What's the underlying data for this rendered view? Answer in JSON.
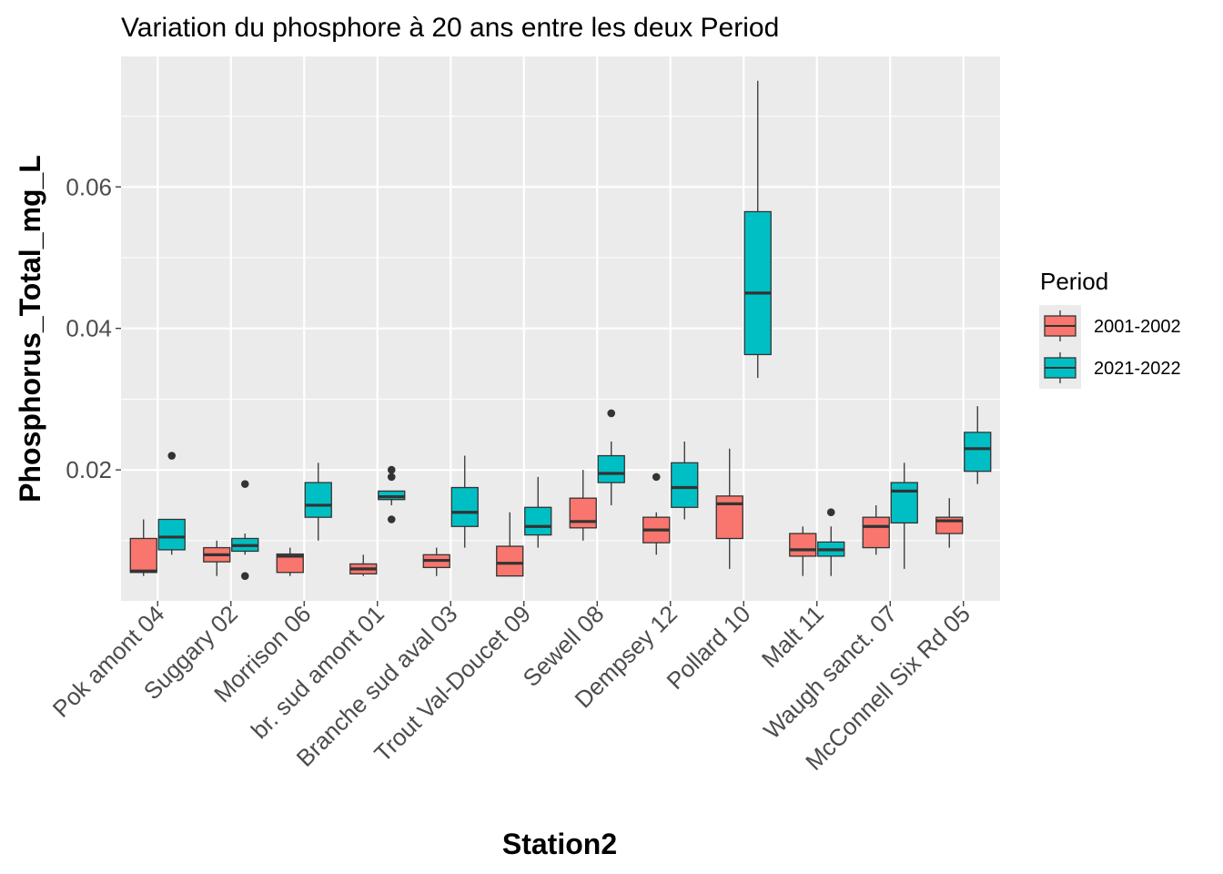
{
  "chart_data": {
    "type": "boxplot",
    "title": "Variation  du phosphore à 20 ans entre les deux Period",
    "xlabel": "Station2",
    "ylabel": "Phosphorus_Total_mg_L",
    "ylim": [
      0.0,
      0.077
    ],
    "yticks": [
      0.02,
      0.04,
      0.06
    ],
    "ytick_labels": [
      "0.02",
      "0.04",
      "0.06"
    ],
    "grid": true,
    "legend": {
      "title": "Period",
      "position": "right"
    },
    "categories": [
      "Pok amont 04",
      "Suggary 02",
      "Morrison 06",
      "br. sud amont 01",
      "Branche sud aval 03",
      "Trout Val-Doucet 09",
      "Sewell 08",
      "Dempsey 12",
      "Pollard 10",
      "Malt 11",
      "Waugh sanct. 07",
      "McConnell Six Rd 05"
    ],
    "series": [
      {
        "name": "2001-2002",
        "color": "#f8766d",
        "boxes": [
          {
            "min": 0.005,
            "q1": 0.0055,
            "median": 0.0057,
            "q3": 0.0103,
            "max": 0.013,
            "outliers": []
          },
          {
            "min": 0.005,
            "q1": 0.007,
            "median": 0.008,
            "q3": 0.009,
            "max": 0.01,
            "outliers": []
          },
          {
            "min": 0.005,
            "q1": 0.0055,
            "median": 0.0078,
            "q3": 0.0081,
            "max": 0.009,
            "outliers": []
          },
          {
            "min": 0.005,
            "q1": 0.0053,
            "median": 0.006,
            "q3": 0.0067,
            "max": 0.008,
            "outliers": []
          },
          {
            "min": 0.005,
            "q1": 0.0062,
            "median": 0.0072,
            "q3": 0.008,
            "max": 0.009,
            "outliers": []
          },
          {
            "min": 0.005,
            "q1": 0.005,
            "median": 0.0068,
            "q3": 0.0092,
            "max": 0.014,
            "outliers": []
          },
          {
            "min": 0.01,
            "q1": 0.0118,
            "median": 0.0127,
            "q3": 0.016,
            "max": 0.02,
            "outliers": []
          },
          {
            "min": 0.008,
            "q1": 0.0097,
            "median": 0.0115,
            "q3": 0.0133,
            "max": 0.014,
            "outliers": [
              0.019
            ]
          },
          {
            "min": 0.006,
            "q1": 0.0103,
            "median": 0.0152,
            "q3": 0.0163,
            "max": 0.023,
            "outliers": []
          },
          {
            "min": 0.005,
            "q1": 0.0078,
            "median": 0.0087,
            "q3": 0.011,
            "max": 0.012,
            "outliers": []
          },
          {
            "min": 0.008,
            "q1": 0.009,
            "median": 0.012,
            "q3": 0.0133,
            "max": 0.015,
            "outliers": []
          },
          {
            "min": 0.009,
            "q1": 0.011,
            "median": 0.0128,
            "q3": 0.0133,
            "max": 0.016,
            "outliers": []
          }
        ]
      },
      {
        "name": "2021-2022",
        "color": "#00bfc4",
        "boxes": [
          {
            "min": 0.008,
            "q1": 0.0087,
            "median": 0.0105,
            "q3": 0.013,
            "max": 0.013,
            "outliers": [
              0.022
            ]
          },
          {
            "min": 0.008,
            "q1": 0.0085,
            "median": 0.0093,
            "q3": 0.0103,
            "max": 0.011,
            "outliers": [
              0.018,
              0.005
            ]
          },
          {
            "min": 0.01,
            "q1": 0.0133,
            "median": 0.015,
            "q3": 0.0182,
            "max": 0.021,
            "outliers": []
          },
          {
            "min": 0.015,
            "q1": 0.0158,
            "median": 0.0162,
            "q3": 0.017,
            "max": 0.017,
            "outliers": [
              0.02,
              0.019,
              0.013
            ]
          },
          {
            "min": 0.009,
            "q1": 0.012,
            "median": 0.014,
            "q3": 0.0175,
            "max": 0.022,
            "outliers": []
          },
          {
            "min": 0.009,
            "q1": 0.0108,
            "median": 0.012,
            "q3": 0.0147,
            "max": 0.019,
            "outliers": []
          },
          {
            "min": 0.015,
            "q1": 0.0182,
            "median": 0.0195,
            "q3": 0.022,
            "max": 0.024,
            "outliers": [
              0.028
            ]
          },
          {
            "min": 0.013,
            "q1": 0.0147,
            "median": 0.0175,
            "q3": 0.021,
            "max": 0.024,
            "outliers": []
          },
          {
            "min": 0.033,
            "q1": 0.0363,
            "median": 0.045,
            "q3": 0.0565,
            "max": 0.075,
            "outliers": []
          },
          {
            "min": 0.005,
            "q1": 0.0078,
            "median": 0.0087,
            "q3": 0.0098,
            "max": 0.012,
            "outliers": [
              0.014
            ]
          },
          {
            "min": 0.006,
            "q1": 0.0125,
            "median": 0.017,
            "q3": 0.0182,
            "max": 0.021,
            "outliers": []
          },
          {
            "min": 0.018,
            "q1": 0.0198,
            "median": 0.023,
            "q3": 0.0253,
            "max": 0.029,
            "outliers": []
          }
        ]
      }
    ]
  }
}
